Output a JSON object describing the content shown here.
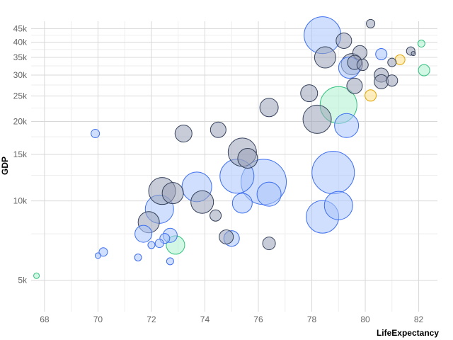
{
  "chart_data": {
    "type": "scatter",
    "xlabel": "LifeExpectancy",
    "ylabel": "GDP",
    "xlim": [
      67.5,
      82.7
    ],
    "ylim": [
      3800,
      48000
    ],
    "yscale": "log",
    "grid": true,
    "x_ticks": [
      68,
      70,
      72,
      74,
      76,
      78,
      80,
      82
    ],
    "y_ticks": [
      5000,
      10000,
      15000,
      20000,
      25000,
      30000,
      35000,
      40000,
      45000
    ],
    "y_tick_labels": [
      "5k",
      "10k",
      "15k",
      "20k",
      "25k",
      "30k",
      "35k",
      "40k",
      "45k"
    ],
    "colors": {
      "gray": {
        "fill": "#9aa3b8",
        "stroke": "#35425c"
      },
      "blue": {
        "fill": "#a9c5fb",
        "stroke": "#3c6ef0"
      },
      "green": {
        "fill": "#aef0cf",
        "stroke": "#2fc27d"
      },
      "yellow": {
        "fill": "#ffe08a",
        "stroke": "#e0a400"
      }
    },
    "points": [
      {
        "x": 80.2,
        "y": 47000,
        "r": 6,
        "c": "gray"
      },
      {
        "x": 78.4,
        "y": 42500,
        "r": 26,
        "c": "blue"
      },
      {
        "x": 79.2,
        "y": 40500,
        "r": 11,
        "c": "gray"
      },
      {
        "x": 82.1,
        "y": 39500,
        "r": 5,
        "c": "green"
      },
      {
        "x": 81.7,
        "y": 37000,
        "r": 6,
        "c": "gray"
      },
      {
        "x": 81.8,
        "y": 36200,
        "r": 3,
        "c": "gray"
      },
      {
        "x": 79.8,
        "y": 36500,
        "r": 10,
        "c": "gray"
      },
      {
        "x": 80.6,
        "y": 36000,
        "r": 8,
        "c": "blue"
      },
      {
        "x": 78.5,
        "y": 35000,
        "r": 15,
        "c": "gray"
      },
      {
        "x": 81.3,
        "y": 34300,
        "r": 7,
        "c": "yellow"
      },
      {
        "x": 81.0,
        "y": 33500,
        "r": 6,
        "c": "gray"
      },
      {
        "x": 79.5,
        "y": 33000,
        "r": 15,
        "c": "gray"
      },
      {
        "x": 79.4,
        "y": 32000,
        "r": 15,
        "c": "blue"
      },
      {
        "x": 79.6,
        "y": 33500,
        "r": 10,
        "c": "gray"
      },
      {
        "x": 79.9,
        "y": 32800,
        "r": 8,
        "c": "gray"
      },
      {
        "x": 82.2,
        "y": 31300,
        "r": 8,
        "c": "green"
      },
      {
        "x": 80.6,
        "y": 30000,
        "r": 10,
        "c": "gray"
      },
      {
        "x": 80.6,
        "y": 28300,
        "r": 10,
        "c": "gray"
      },
      {
        "x": 81.0,
        "y": 28600,
        "r": 8,
        "c": "gray"
      },
      {
        "x": 79.6,
        "y": 27300,
        "r": 11,
        "c": "gray"
      },
      {
        "x": 77.9,
        "y": 25600,
        "r": 12,
        "c": "gray"
      },
      {
        "x": 80.2,
        "y": 25100,
        "r": 8,
        "c": "yellow"
      },
      {
        "x": 79.0,
        "y": 23100,
        "r": 26,
        "c": "green"
      },
      {
        "x": 76.4,
        "y": 22600,
        "r": 13,
        "c": "gray"
      },
      {
        "x": 78.2,
        "y": 20400,
        "r": 20,
        "c": "gray"
      },
      {
        "x": 79.3,
        "y": 19300,
        "r": 17,
        "c": "blue"
      },
      {
        "x": 74.5,
        "y": 18600,
        "r": 11,
        "c": "gray"
      },
      {
        "x": 69.9,
        "y": 18000,
        "r": 6,
        "c": "blue"
      },
      {
        "x": 73.2,
        "y": 18000,
        "r": 12,
        "c": "gray"
      },
      {
        "x": 75.4,
        "y": 15300,
        "r": 20,
        "c": "gray"
      },
      {
        "x": 75.6,
        "y": 14500,
        "r": 14,
        "c": "gray"
      },
      {
        "x": 78.8,
        "y": 12800,
        "r": 30,
        "c": "blue"
      },
      {
        "x": 75.2,
        "y": 12400,
        "r": 24,
        "c": "blue"
      },
      {
        "x": 76.2,
        "y": 11800,
        "r": 32,
        "c": "blue"
      },
      {
        "x": 73.7,
        "y": 11300,
        "r": 21,
        "c": "blue"
      },
      {
        "x": 72.4,
        "y": 10900,
        "r": 19,
        "c": "gray"
      },
      {
        "x": 72.8,
        "y": 10700,
        "r": 15,
        "c": "gray"
      },
      {
        "x": 76.4,
        "y": 10600,
        "r": 17,
        "c": "blue"
      },
      {
        "x": 73.9,
        "y": 9900,
        "r": 16,
        "c": "gray"
      },
      {
        "x": 75.4,
        "y": 9800,
        "r": 14,
        "c": "blue"
      },
      {
        "x": 79.0,
        "y": 9600,
        "r": 20,
        "c": "blue"
      },
      {
        "x": 72.3,
        "y": 9300,
        "r": 20,
        "c": "blue"
      },
      {
        "x": 74.4,
        "y": 8800,
        "r": 8,
        "c": "gray"
      },
      {
        "x": 78.4,
        "y": 8700,
        "r": 23,
        "c": "blue"
      },
      {
        "x": 71.9,
        "y": 8300,
        "r": 15,
        "c": "gray"
      },
      {
        "x": 71.7,
        "y": 7500,
        "r": 12,
        "c": "blue"
      },
      {
        "x": 74.8,
        "y": 7300,
        "r": 10,
        "c": "gray"
      },
      {
        "x": 75.0,
        "y": 7200,
        "r": 11,
        "c": "blue"
      },
      {
        "x": 72.7,
        "y": 7400,
        "r": 10,
        "c": "blue"
      },
      {
        "x": 72.5,
        "y": 7200,
        "r": 7,
        "c": "blue"
      },
      {
        "x": 72.9,
        "y": 6800,
        "r": 13,
        "c": "green"
      },
      {
        "x": 72.3,
        "y": 6900,
        "r": 6,
        "c": "blue"
      },
      {
        "x": 72.0,
        "y": 6800,
        "r": 5,
        "c": "blue"
      },
      {
        "x": 76.4,
        "y": 6900,
        "r": 9,
        "c": "gray"
      },
      {
        "x": 70.2,
        "y": 6400,
        "r": 6,
        "c": "blue"
      },
      {
        "x": 70.0,
        "y": 6200,
        "r": 4,
        "c": "blue"
      },
      {
        "x": 71.5,
        "y": 6100,
        "r": 5,
        "c": "blue"
      },
      {
        "x": 72.7,
        "y": 5900,
        "r": 5,
        "c": "blue"
      },
      {
        "x": 67.7,
        "y": 5200,
        "r": 4,
        "c": "green"
      }
    ]
  }
}
